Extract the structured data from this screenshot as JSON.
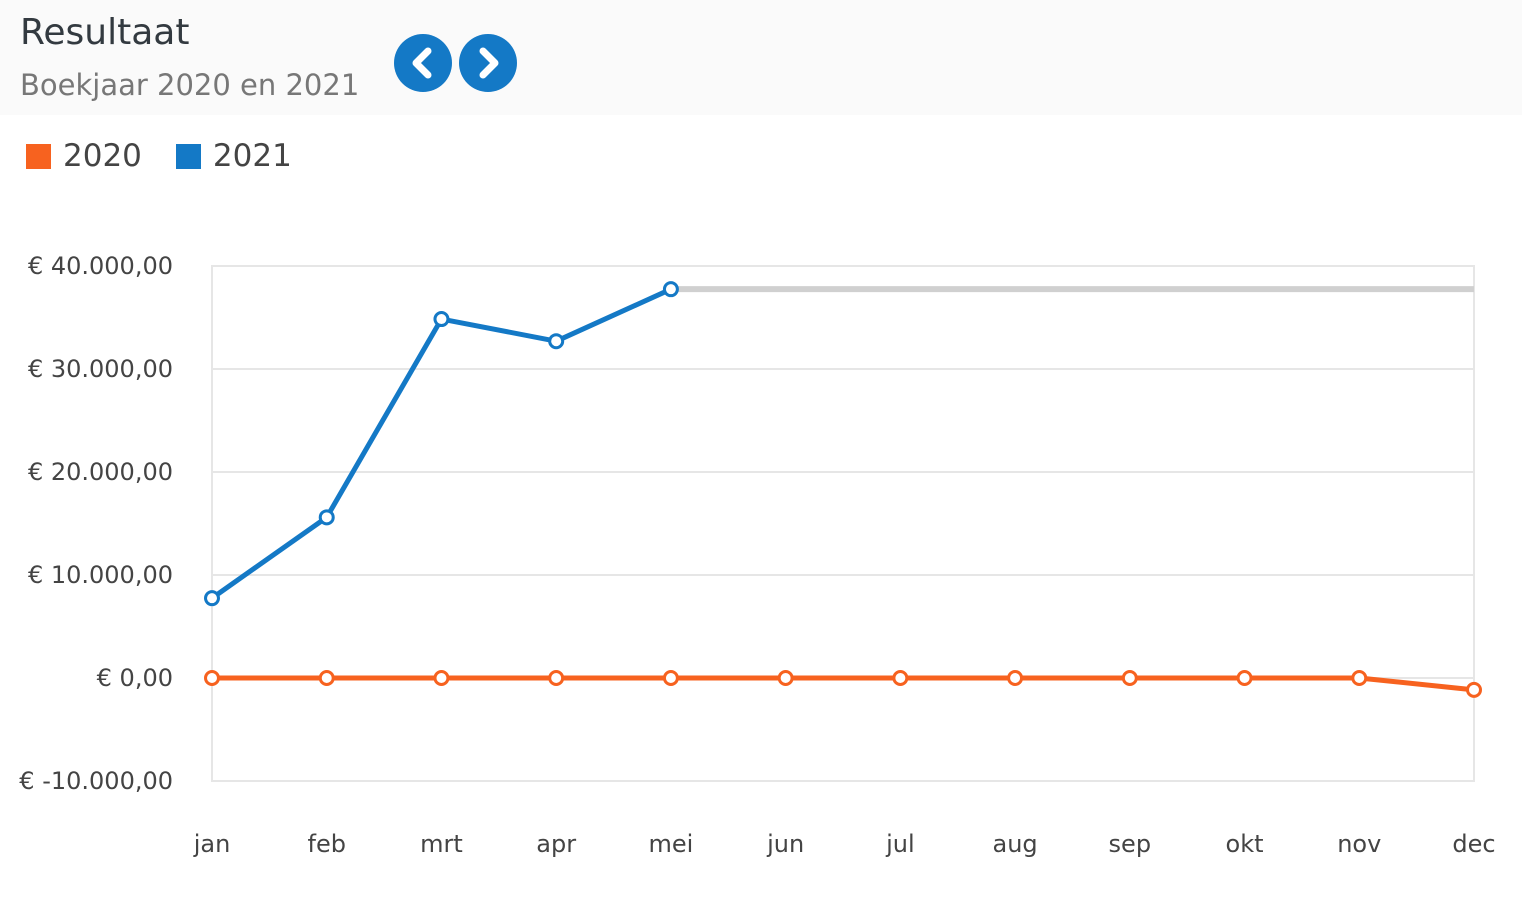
{
  "header": {
    "title": "Resultaat",
    "subtitle": "Boekjaar 2020 en 2021",
    "prev_label": "previous",
    "next_label": "next"
  },
  "colors": {
    "s2020": "#f7621f",
    "s2021": "#1479c6",
    "projection": "#d0d0d0",
    "grid": "#e6e6e6"
  },
  "chart_data": {
    "type": "line",
    "title": "Resultaat",
    "categories": [
      "jan",
      "feb",
      "mrt",
      "apr",
      "mei",
      "jun",
      "jul",
      "aug",
      "sep",
      "okt",
      "nov",
      "dec"
    ],
    "y_tick_labels": [
      "€ 40.000,00",
      "€ 30.000,00",
      "€ 20.000,00",
      "€ 10.000,00",
      "€ 0,00",
      "€ -10.000,00"
    ],
    "y_ticks": [
      40000,
      30000,
      20000,
      10000,
      0,
      -10000
    ],
    "ylim": [
      -10000,
      40000
    ],
    "legend_position": "top-left",
    "series": [
      {
        "name": "2020",
        "values": [
          0,
          0,
          0,
          0,
          0,
          0,
          0,
          0,
          0,
          0,
          0,
          -1150
        ]
      },
      {
        "name": "2021",
        "values": [
          7750,
          15600,
          34850,
          32700,
          37750,
          null,
          null,
          null,
          null,
          null,
          null,
          null
        ]
      }
    ],
    "projection": {
      "series": "2021",
      "value": 37750,
      "from": "mei",
      "to": "dec"
    }
  }
}
